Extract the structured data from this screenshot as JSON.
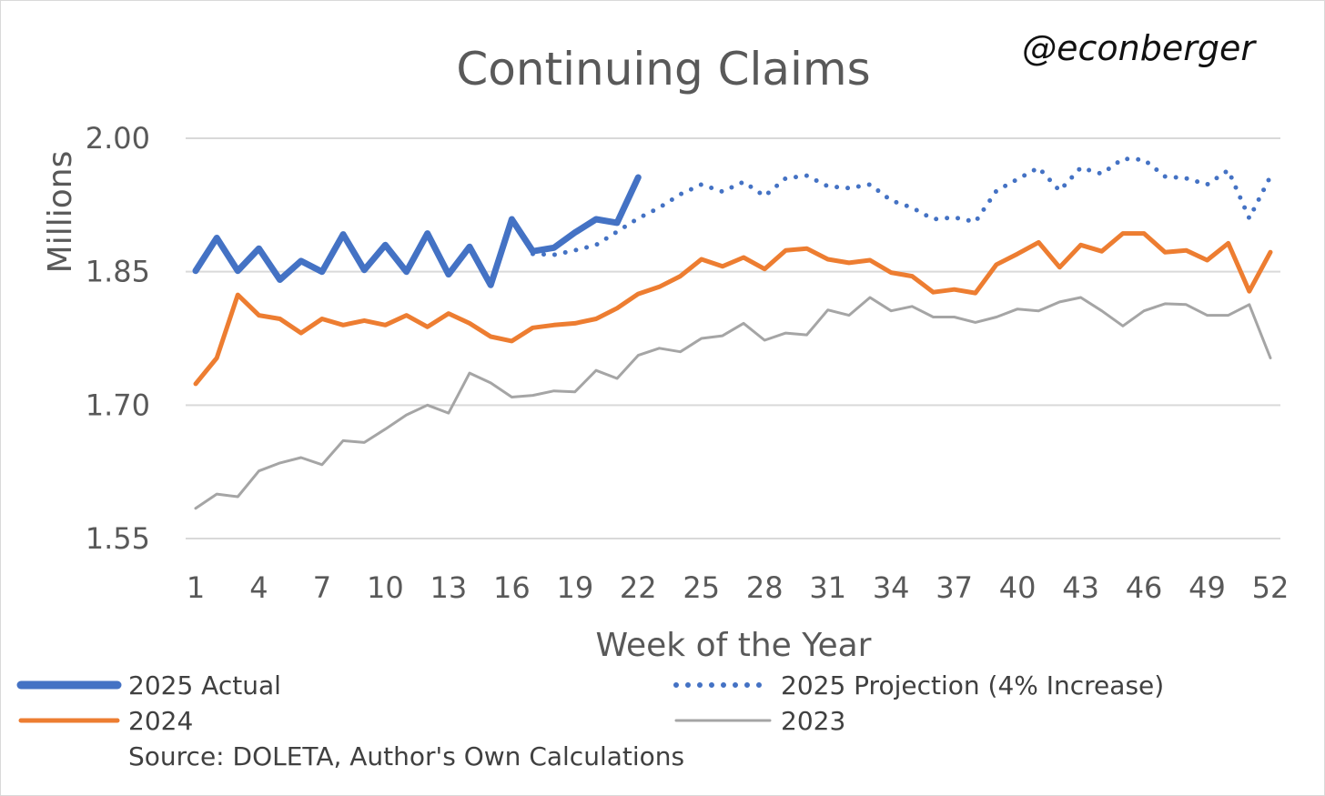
{
  "chart_data": {
    "type": "line",
    "title": "Continuing Claims",
    "handle": "@econberger",
    "xlabel": "Week of the Year",
    "ylabel": "Millions",
    "ylim": [
      1.55,
      2.0
    ],
    "xlim": [
      1,
      52
    ],
    "yticks": [
      "1.55",
      "1.70",
      "1.85",
      "2.00"
    ],
    "ytick_values": [
      1.55,
      1.7,
      1.85,
      2.0
    ],
    "xticks": [
      1,
      4,
      7,
      10,
      13,
      16,
      19,
      22,
      25,
      28,
      31,
      34,
      37,
      40,
      43,
      46,
      49,
      52
    ],
    "grid": true,
    "source": "Source: DOLETA, Author's Own Calculations",
    "series": [
      {
        "name": "2023",
        "color": "#a5a5a5",
        "style": "solid",
        "x_start": 1,
        "values": [
          1.584,
          1.6,
          1.597,
          1.626,
          1.635,
          1.641,
          1.633,
          1.66,
          1.658,
          1.673,
          1.689,
          1.7,
          1.691,
          1.736,
          1.725,
          1.709,
          1.711,
          1.716,
          1.715,
          1.739,
          1.73,
          1.756,
          1.764,
          1.76,
          1.775,
          1.778,
          1.792,
          1.773,
          1.781,
          1.779,
          1.807,
          1.801,
          1.821,
          1.806,
          1.811,
          1.799,
          1.799,
          1.793,
          1.799,
          1.808,
          1.806,
          1.816,
          1.821,
          1.806,
          1.789,
          1.806,
          1.814,
          1.813,
          1.801,
          1.801,
          1.813,
          1.753
        ]
      },
      {
        "name": "2024",
        "color": "#ed7d31",
        "style": "solid",
        "x_start": 1,
        "values": [
          1.724,
          1.753,
          1.824,
          1.801,
          1.797,
          1.781,
          1.797,
          1.79,
          1.795,
          1.79,
          1.801,
          1.788,
          1.803,
          1.792,
          1.777,
          1.772,
          1.787,
          1.79,
          1.792,
          1.797,
          1.809,
          1.825,
          1.833,
          1.845,
          1.864,
          1.856,
          1.866,
          1.853,
          1.874,
          1.876,
          1.864,
          1.86,
          1.863,
          1.849,
          1.845,
          1.827,
          1.83,
          1.826,
          1.858,
          1.87,
          1.883,
          1.855,
          1.88,
          1.873,
          1.893,
          1.893,
          1.872,
          1.874,
          1.863,
          1.882,
          1.828,
          1.872
        ]
      },
      {
        "name": "2025 Projection (4% Increase)",
        "color": "#4472c4",
        "style": "dotted",
        "x_start": 17,
        "values": [
          1.87,
          1.869,
          1.874,
          1.88,
          1.895,
          1.91,
          1.922,
          1.937,
          1.948,
          1.94,
          1.951,
          1.935,
          1.955,
          1.958,
          1.946,
          1.944,
          1.948,
          1.93,
          1.922,
          1.909,
          1.911,
          1.906,
          1.941,
          1.954,
          1.967,
          1.941,
          1.967,
          1.96,
          1.977,
          1.976,
          1.957,
          1.955,
          1.948,
          1.964,
          1.91,
          1.957
        ]
      },
      {
        "name": "2025 Actual",
        "color": "#4472c4",
        "style": "thick",
        "x_start": 1,
        "values": [
          1.851,
          1.888,
          1.851,
          1.876,
          1.841,
          1.862,
          1.85,
          1.892,
          1.852,
          1.88,
          1.85,
          1.893,
          1.847,
          1.878,
          1.835,
          1.909,
          1.873,
          1.877,
          1.894,
          1.909,
          1.905,
          1.956
        ]
      }
    ],
    "legend": [
      "2025 Actual",
      "2025 Projection (4% Increase)",
      "2024",
      "2023"
    ]
  }
}
